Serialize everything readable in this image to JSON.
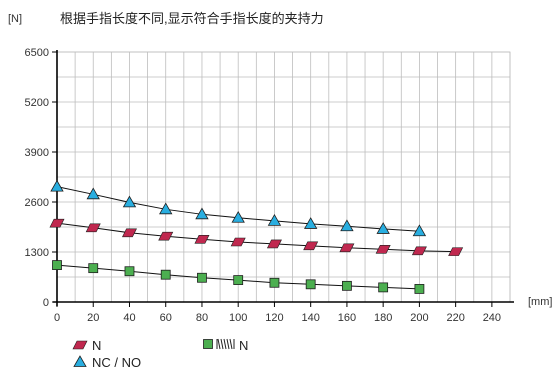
{
  "chart_data": {
    "type": "line",
    "title": "根据手指长度不同,显示符合手指长度的夹持力",
    "y_unit": "[N]",
    "x_unit": "[mm]",
    "xlim": [
      0,
      250
    ],
    "ylim": [
      0,
      6500
    ],
    "x_ticks": [
      0,
      20,
      40,
      60,
      80,
      100,
      120,
      140,
      160,
      180,
      200,
      220,
      240
    ],
    "y_ticks": [
      0,
      1300,
      2600,
      3900,
      5200,
      6500
    ],
    "grid": true,
    "legend_position": "bottom-left",
    "series": [
      {
        "name": "N",
        "marker": "parallelogram",
        "color": "#c0284f",
        "x": [
          0,
          20,
          40,
          60,
          80,
          100,
          120,
          140,
          160,
          180,
          200,
          220
        ],
        "y": [
          2050,
          1930,
          1800,
          1710,
          1630,
          1560,
          1510,
          1460,
          1410,
          1370,
          1330,
          1310
        ]
      },
      {
        "name": "NC / NO",
        "marker": "triangle",
        "color": "#29aee0",
        "x": [
          0,
          20,
          40,
          60,
          80,
          100,
          120,
          140,
          160,
          180,
          200
        ],
        "y": [
          3000,
          2800,
          2590,
          2410,
          2280,
          2190,
          2110,
          2030,
          1970,
          1900,
          1840
        ]
      },
      {
        "name": "N",
        "marker": "square",
        "color": "#4caf50",
        "x": [
          0,
          20,
          40,
          60,
          80,
          100,
          120,
          140,
          160,
          180,
          200
        ],
        "y": [
          960,
          880,
          800,
          710,
          630,
          570,
          500,
          460,
          420,
          380,
          340
        ]
      }
    ]
  }
}
